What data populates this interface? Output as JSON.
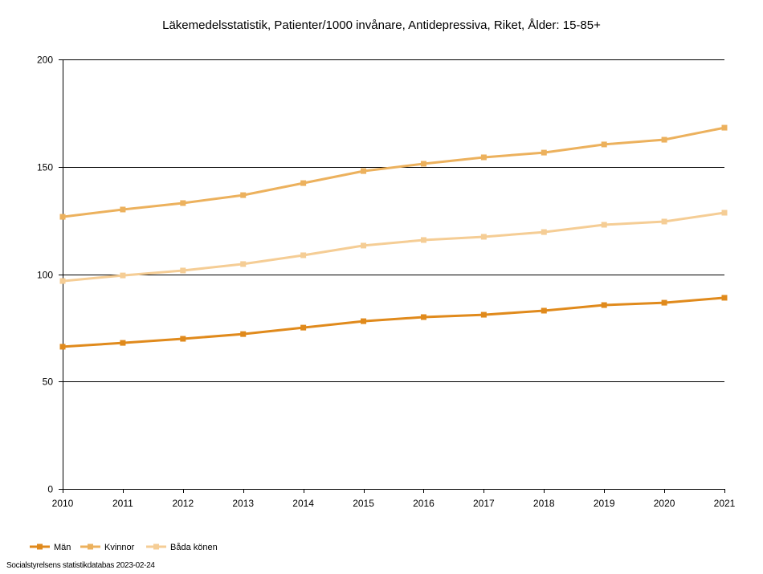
{
  "chart_data": {
    "type": "line",
    "title": "Läkemedelsstatistik, Patienter/1000 invånare, Antidepressiva, Riket, Ålder: 15-85+",
    "xlabel": "",
    "ylabel": "",
    "categories": [
      "2010",
      "2011",
      "2012",
      "2013",
      "2014",
      "2015",
      "2016",
      "2017",
      "2018",
      "2019",
      "2020",
      "2021"
    ],
    "ylim": [
      0,
      200
    ],
    "y_ticks": [
      0,
      50,
      100,
      150,
      200
    ],
    "grid": true,
    "legend_position": "bottom-left",
    "series": [
      {
        "name": "Män",
        "color": "#e08a1c",
        "values": [
          66.2,
          68.0,
          69.9,
          72.1,
          75.1,
          78.1,
          80.0,
          81.1,
          83.0,
          85.6,
          86.7,
          89.0
        ]
      },
      {
        "name": "Kvinnor",
        "color": "#ecb15d",
        "values": [
          126.7,
          130.1,
          133.1,
          136.8,
          142.4,
          148.0,
          151.4,
          154.4,
          156.6,
          160.4,
          162.6,
          168.2
        ]
      },
      {
        "name": "Båda könen",
        "color": "#f5cd95",
        "values": [
          96.8,
          99.4,
          101.7,
          104.7,
          108.8,
          113.3,
          115.9,
          117.4,
          119.6,
          123.0,
          124.5,
          128.6
        ]
      }
    ]
  },
  "footer": {
    "source": "Socialstyrelsens statistikdatabas 2023-02-24"
  }
}
